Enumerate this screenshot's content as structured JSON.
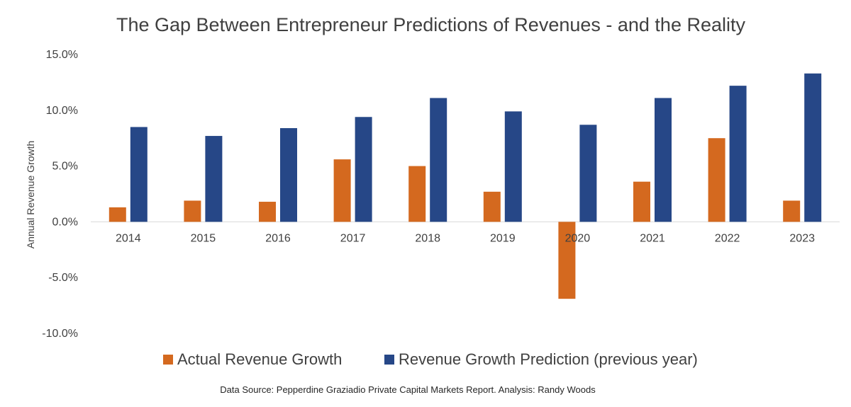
{
  "chart_data": {
    "type": "bar",
    "title": "The Gap Between Entrepreneur Predictions of Revenues - and the Reality",
    "ylabel": "Annual Revenue Growth",
    "xlabel": "",
    "categories": [
      "2014",
      "2015",
      "2016",
      "2017",
      "2018",
      "2019",
      "2020",
      "2021",
      "2022",
      "2023"
    ],
    "series": [
      {
        "name": "Actual Revenue Growth",
        "color": "#D4691F",
        "values": [
          1.3,
          1.9,
          1.8,
          5.6,
          5.0,
          2.7,
          -6.9,
          3.6,
          7.5,
          1.9
        ]
      },
      {
        "name": "Revenue Growth Prediction (previous year)",
        "color": "#264787",
        "values": [
          8.5,
          7.7,
          8.4,
          9.4,
          11.1,
          9.9,
          8.7,
          11.1,
          12.2,
          13.3
        ]
      }
    ],
    "ylim": [
      -10,
      15
    ],
    "yticks": [
      -10,
      -5,
      0,
      5,
      10,
      15
    ],
    "ytick_labels": [
      "-10.0%",
      "-5.0%",
      "0.0%",
      "5.0%",
      "10.0%",
      "15.0%"
    ],
    "grid": false,
    "legend_position": "bottom"
  },
  "source_note": "Data Source: Pepperdine Graziadio Private Capital Markets Report.  Analysis: Randy Woods"
}
